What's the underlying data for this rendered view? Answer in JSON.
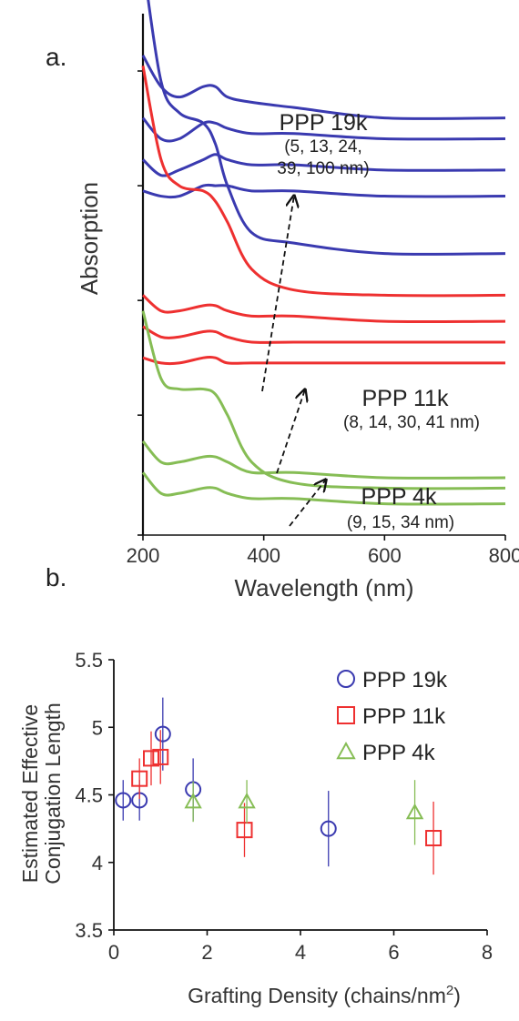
{
  "chart_data": [
    {
      "panel_label": "a.",
      "type": "line",
      "xlabel": "Wavelength (nm)",
      "ylabel": "Absorption",
      "xlim": [
        200,
        800
      ],
      "x_ticks": [
        "200",
        "400",
        "600",
        "800"
      ],
      "y_scale": "stacked, offset (arbitrary units)",
      "colors": {
        "PPP 19k": "#3a3ab0",
        "PPP 11k": "#ee3030",
        "PPP 4k": "#86bd55"
      },
      "annotations": [
        {
          "label": "PPP 19k",
          "detail": "(5, 13, 24,",
          "detail2": "39, 100 nm)"
        },
        {
          "label": "PPP 11k",
          "detail": "(8, 14, 30, 41 nm)"
        },
        {
          "label": "PPP 4k",
          "detail": "(9, 15, 34 nm)"
        }
      ],
      "series": [
        {
          "name": "PPP 19k",
          "color": "#3a3ab0",
          "x": [
            200,
            230,
            260,
            300,
            320,
            340,
            380,
            450,
            600,
            800
          ],
          "curves": [
            [
              1.1,
              0.87,
              0.81,
              0.79,
              0.75,
              0.67,
              0.58,
              0.56,
              0.54,
              0.54
            ],
            [
              0.92,
              0.86,
              0.84,
              0.86,
              0.86,
              0.84,
              0.83,
              0.82,
              0.8,
              0.8
            ],
            [
              0.8,
              0.76,
              0.76,
              0.79,
              0.79,
              0.78,
              0.77,
              0.77,
              0.76,
              0.76
            ],
            [
              0.72,
              0.69,
              0.7,
              0.72,
              0.73,
              0.72,
              0.71,
              0.71,
              0.7,
              0.7
            ],
            [
              0.66,
              0.65,
              0.65,
              0.67,
              0.67,
              0.67,
              0.66,
              0.66,
              0.65,
              0.65
            ]
          ]
        },
        {
          "name": "PPP 11k",
          "color": "#ee3030",
          "x": [
            200,
            230,
            260,
            300,
            320,
            340,
            380,
            450,
            600,
            800
          ],
          "curves": [
            [
              0.9,
              0.72,
              0.67,
              0.66,
              0.64,
              0.6,
              0.51,
              0.47,
              0.46,
              0.46
            ],
            [
              0.46,
              0.43,
              0.43,
              0.44,
              0.44,
              0.43,
              0.42,
              0.42,
              0.41,
              0.41
            ],
            [
              0.4,
              0.38,
              0.38,
              0.39,
              0.39,
              0.38,
              0.37,
              0.37,
              0.37,
              0.37
            ],
            [
              0.34,
              0.33,
              0.33,
              0.34,
              0.34,
              0.33,
              0.33,
              0.33,
              0.33,
              0.33
            ]
          ]
        },
        {
          "name": "PPP 4k",
          "color": "#86bd55",
          "x": [
            200,
            230,
            260,
            300,
            320,
            340,
            380,
            450,
            600,
            800
          ],
          "curves": [
            [
              0.43,
              0.3,
              0.28,
              0.28,
              0.27,
              0.23,
              0.14,
              0.1,
              0.09,
              0.09
            ],
            [
              0.18,
              0.14,
              0.14,
              0.15,
              0.15,
              0.14,
              0.12,
              0.12,
              0.11,
              0.11
            ],
            [
              0.12,
              0.08,
              0.08,
              0.09,
              0.09,
              0.08,
              0.07,
              0.07,
              0.06,
              0.06
            ]
          ]
        }
      ]
    },
    {
      "panel_label": "b.",
      "type": "scatter",
      "xlabel": "Grafting Density (chains/nm",
      "xlabel_sup": "2",
      "xlabel_end": ")",
      "ylabel_line1": "Estimated Effective",
      "ylabel_line2": "Conjugation Length",
      "xlim": [
        0,
        8
      ],
      "ylim": [
        3.5,
        5.5
      ],
      "x_ticks": [
        "0",
        "2",
        "4",
        "6",
        "8"
      ],
      "y_ticks": [
        "3.5",
        "4",
        "4.5",
        "5",
        "5.5"
      ],
      "legend_placement": "top-right",
      "series": [
        {
          "name": "PPP 19k",
          "marker": "circle",
          "color": "#3a3ab0",
          "x": [
            0.2,
            0.55,
            1.05,
            1.7,
            4.6
          ],
          "y": [
            4.46,
            4.46,
            4.95,
            4.54,
            4.25
          ],
          "err": [
            0.15,
            0.15,
            0.27,
            0.23,
            0.28
          ]
        },
        {
          "name": "PPP 11k",
          "marker": "square",
          "color": "#ee3030",
          "x": [
            0.55,
            0.8,
            1.0,
            2.8,
            6.85
          ],
          "y": [
            4.62,
            4.77,
            4.78,
            4.24,
            4.18
          ],
          "err": [
            0.15,
            0.2,
            0.2,
            0.2,
            0.27
          ]
        },
        {
          "name": "PPP 4k",
          "marker": "triangle",
          "color": "#86bd55",
          "x": [
            1.7,
            2.85,
            6.45
          ],
          "y": [
            4.45,
            4.45,
            4.37
          ],
          "err": [
            0.15,
            0.16,
            0.24
          ]
        }
      ]
    }
  ]
}
